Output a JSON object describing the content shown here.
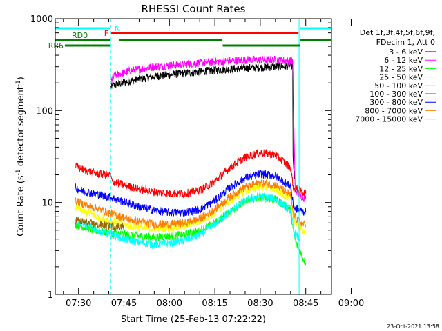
{
  "chart_data": {
    "type": "line",
    "title": "RHESSI Count Rates",
    "xlabel": "Start Time (25-Feb-13 07:22:22)",
    "ylabel_main": "Count Rate (s",
    "ylabel_sup1": "-1",
    "ylabel_mid": " detector segment",
    "ylabel_sup2": "-1",
    "ylabel_end": ")",
    "yscale": "log",
    "ylim": [
      1,
      1000
    ],
    "xlim_minutes": [
      7.32,
      98.5
    ],
    "xticks": [
      {
        "m": 15,
        "label": "07:30"
      },
      {
        "m": 30,
        "label": "07:45"
      },
      {
        "m": 45,
        "label": "08:00"
      },
      {
        "m": 60,
        "label": "08:15"
      },
      {
        "m": 75,
        "label": "08:30"
      },
      {
        "m": 90,
        "label": "08:45"
      },
      {
        "m": 105,
        "label": "09:00"
      }
    ],
    "yticks": [
      {
        "v": 1,
        "label": "1"
      },
      {
        "v": 10,
        "label": "10"
      },
      {
        "v": 100,
        "label": "100"
      },
      {
        "v": 1000,
        "label": "1000"
      }
    ],
    "legend_header": [
      "Det 1f,3f,4f,5f,6f,9f,",
      "FDecim 1, Att 0"
    ],
    "legend_placement": "right",
    "series": [
      {
        "name": "3 - 6 keV",
        "color": "#000000",
        "x": [
          25.7,
          27,
          32,
          40,
          50,
          60,
          70,
          80,
          85.7,
          85.8,
          86.3
        ],
        "y": [
          180,
          190,
          210,
          235,
          255,
          275,
          290,
          300,
          305,
          30,
          18
        ]
      },
      {
        "name": "6 - 12 keV",
        "color": "#ff00ff",
        "x": [
          25.7,
          27,
          32,
          40,
          50,
          60,
          70,
          80,
          85.7,
          86.5,
          88,
          90
        ],
        "y": [
          210,
          240,
          270,
          300,
          320,
          340,
          355,
          355,
          345,
          14,
          12,
          11
        ]
      },
      {
        "name": "12 - 25 keV",
        "color": "#00ff00",
        "x": [
          14,
          16,
          20,
          25,
          30,
          35,
          40,
          45,
          50,
          55,
          60,
          65,
          70,
          75,
          80,
          85,
          86,
          87,
          88,
          89,
          90
        ],
        "y": [
          5.8,
          5.5,
          5.0,
          4.7,
          4.5,
          4.3,
          4.2,
          4.3,
          4.5,
          4.9,
          6.0,
          8.0,
          10.2,
          11.3,
          10.8,
          8.5,
          4.5,
          3.5,
          3.0,
          2.5,
          2.2
        ]
      },
      {
        "name": "25 - 50 keV",
        "color": "#00ffff",
        "x": [
          14,
          16,
          20,
          25,
          30,
          35,
          40,
          45,
          50,
          55,
          60,
          65,
          70,
          75,
          80,
          85,
          86,
          87,
          88
        ],
        "y": [
          6.5,
          6.0,
          5.2,
          4.5,
          4.0,
          3.7,
          3.5,
          3.6,
          3.9,
          4.4,
          5.8,
          8.0,
          10.5,
          11.8,
          11.0,
          8.2,
          5.0,
          4.3,
          4.0
        ]
      },
      {
        "name": "50 - 100 keV",
        "color": "#ffff00",
        "x": [
          14,
          16,
          20,
          25,
          30,
          35,
          40,
          45,
          50,
          55,
          60,
          65,
          70,
          75,
          80,
          85,
          86,
          87,
          88,
          89,
          90
        ],
        "y": [
          8.8,
          8.2,
          7.3,
          6.4,
          5.7,
          5.3,
          5.2,
          5.3,
          5.6,
          6.2,
          7.8,
          10.5,
          13.5,
          14.8,
          14.0,
          11.0,
          6.5,
          5.8,
          5.4,
          5.0,
          4.8
        ]
      },
      {
        "name": "100 - 300 keV",
        "color": "#ff0000",
        "x": [
          14,
          16,
          20,
          24,
          25.6,
          26,
          30,
          35,
          40,
          45,
          50,
          55,
          60,
          65,
          70,
          75,
          80,
          85,
          86,
          87,
          88,
          89,
          90
        ],
        "y": [
          25,
          23,
          21,
          20,
          20,
          17,
          15.5,
          14,
          13,
          12.5,
          12.5,
          13.5,
          17,
          24,
          31,
          35,
          33,
          24,
          14,
          14,
          13.5,
          13,
          12.5
        ]
      },
      {
        "name": "300 - 800 keV",
        "color": "#0000ff",
        "x": [
          14,
          16,
          20,
          25,
          30,
          35,
          40,
          45,
          50,
          55,
          60,
          65,
          70,
          75,
          80,
          85,
          86,
          87,
          88,
          89,
          90
        ],
        "y": [
          14.5,
          13.5,
          12.5,
          11.5,
          10.2,
          9.0,
          8.2,
          7.8,
          7.8,
          8.4,
          10.5,
          14.5,
          18.5,
          20.5,
          19.5,
          15.0,
          8.8,
          8.5,
          8.3,
          8.0,
          7.8
        ]
      },
      {
        "name": "800 - 7000 keV",
        "color": "#ff8000",
        "x": [
          14,
          16,
          20,
          25,
          30,
          35,
          40,
          45,
          50,
          55,
          60,
          65,
          70,
          75,
          80,
          85,
          86,
          87,
          88,
          89,
          90
        ],
        "y": [
          10.5,
          9.8,
          8.8,
          7.8,
          6.8,
          6.2,
          5.8,
          5.8,
          6.0,
          6.6,
          8.4,
          11.5,
          14.8,
          16.3,
          15.5,
          12.0,
          7.2,
          6.6,
          6.2,
          5.9,
          5.6
        ]
      },
      {
        "name": "7000 - 15000 keV",
        "color": "#996600",
        "x": [
          14,
          16,
          20,
          25,
          30
        ],
        "y": [
          6.5,
          6.2,
          5.8,
          5.6,
          5.5
        ]
      }
    ],
    "attenuator_bars": [
      {
        "label": "N",
        "color": "#00ffff",
        "segments": [
          [
            7.32,
            25.5
          ],
          [
            88.2,
            98.5
          ]
        ]
      },
      {
        "label": "F",
        "color": "#ff0000",
        "segments": [
          [
            25.8,
            87.6
          ]
        ]
      },
      {
        "label": "RD0",
        "color": "#008000",
        "segments": [
          [
            7.32,
            25.5
          ],
          [
            28.3,
            62.5
          ],
          [
            88.2,
            98.5
          ]
        ]
      },
      {
        "label": "RB6",
        "color": "#008000",
        "segments": [
          [
            10.5,
            25.5
          ],
          [
            62.6,
            88.1
          ]
        ]
      }
    ],
    "vertical_lines": [
      {
        "m": 7.32,
        "style": "solid"
      },
      {
        "m": 25.6,
        "style": "dashed"
      },
      {
        "m": 87.8,
        "style": "solid"
      },
      {
        "m": 97.7,
        "style": "dashed"
      }
    ],
    "footer_timestamp": "23-Oct-2021 13:58"
  }
}
